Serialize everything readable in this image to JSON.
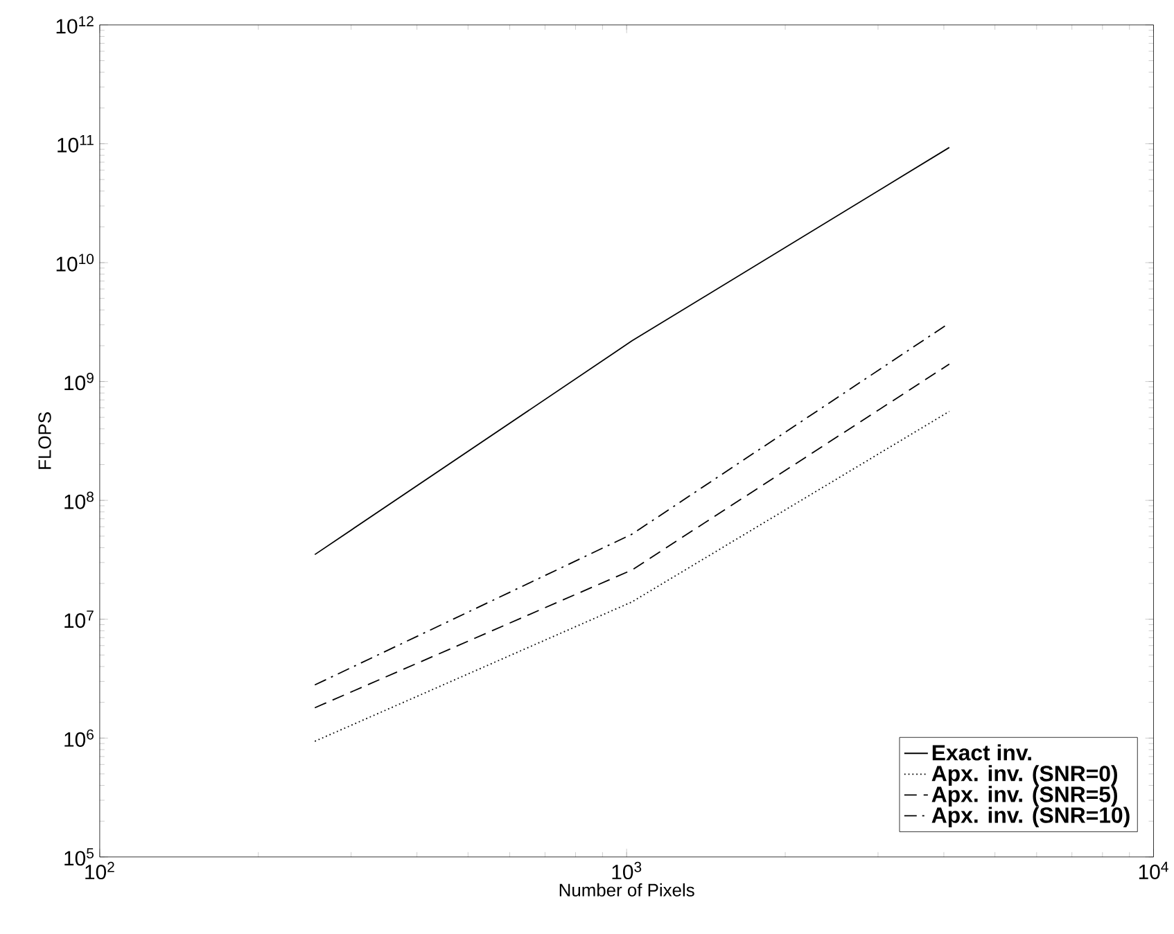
{
  "chart_data": {
    "type": "line",
    "xlabel": "Number of Pixels",
    "ylabel": "FLOPS",
    "log": "xy",
    "grid": false,
    "legend": "bottom right",
    "marker": "none",
    "x": [
      256,
      1024,
      4096
    ],
    "xlim": [
      100,
      10000
    ],
    "xticks": [
      {
        "value": 100,
        "label": "10$^{2}$"
      },
      {
        "value": 1000,
        "label": "10$^{3}$"
      },
      {
        "value": 10000,
        "label": "10$^{4}$"
      }
    ],
    "ylim": [
      100000,
      1000000000000
    ],
    "yticks": [
      {
        "value": 100000,
        "label": "10$^{5}$"
      },
      {
        "value": 1000000,
        "label": "10$^{6}$"
      },
      {
        "value": 10000000,
        "label": "10$^{7}$"
      },
      {
        "value": 100000000,
        "label": "10$^{8}$"
      },
      {
        "value": 1000000000,
        "label": "10$^{9}$"
      },
      {
        "value": 10000000000,
        "label": "10$^{10}$"
      },
      {
        "value": 100000000000,
        "label": "10$^{11}$"
      },
      {
        "value": 1000000000000,
        "label": "10$^{12}$"
      }
    ],
    "series": [
      {
        "name": "Exact inv.",
        "color": "#000000",
        "line_style": "solid",
        "values": [
          35000000,
          2200000000,
          93000000000
        ]
      },
      {
        "name": "Apx. inv. (SNR=0)",
        "color": "#000000",
        "line_style": "dotted",
        "values": [
          940000,
          14000000,
          560000000
        ]
      },
      {
        "name": "Apx. inv. (SNR=5)",
        "color": "#000000",
        "line_style": "dashed",
        "values": [
          1800000,
          26000000,
          1400000000
        ]
      },
      {
        "name": "Apx. inv. (SNR=10)",
        "color": "#000000",
        "line_style": "dashdot",
        "values": [
          2800000,
          52000000,
          3100000000
        ]
      }
    ]
  }
}
